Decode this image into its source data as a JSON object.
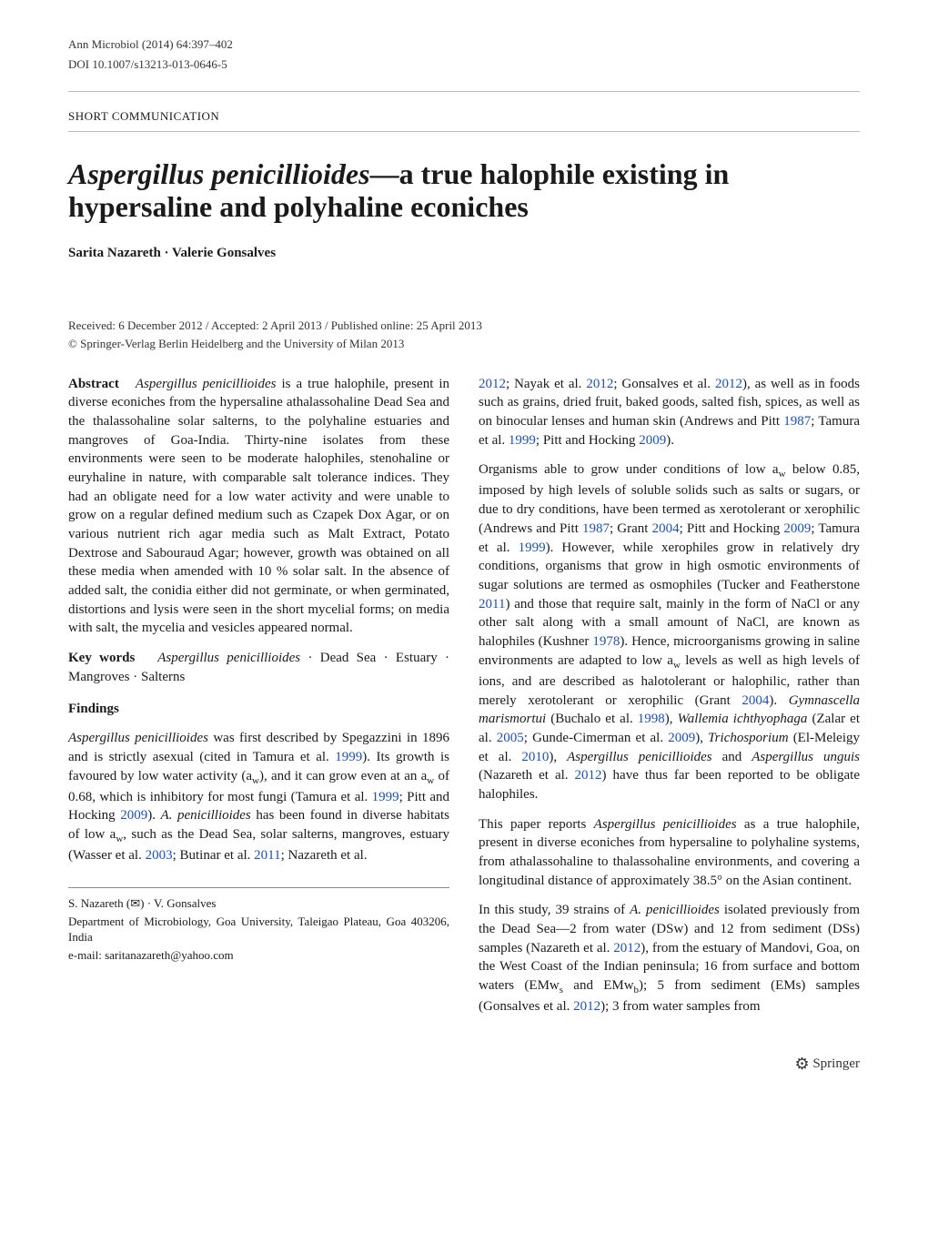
{
  "header": {
    "journal_ref": "Ann Microbiol (2014) 64:397–402",
    "doi": "DOI 10.1007/s13213-013-0646-5",
    "article_type": "SHORT COMMUNICATION"
  },
  "title": {
    "italic_part": "Aspergillus penicillioides",
    "rest": "—a true halophile existing in hypersaline and polyhaline econiches"
  },
  "authors": "Sarita Nazareth · Valerie Gonsalves",
  "dates": "Received: 6 December 2012 / Accepted: 2 April 2013 / Published online: 25 April 2013",
  "copyright": "© Springer-Verlag Berlin Heidelberg and the University of Milan 2013",
  "abstract": {
    "label": "Abstract",
    "text_1_italic": "Aspergillus penicillioides",
    "text_1": " is a true halophile, present in diverse econiches from the hypersaline athalassohaline Dead Sea and the thalassohaline solar salterns, to the polyhaline estuaries and mangroves of Goa-India. Thirty-nine isolates from these environments were seen to be moderate halophiles, stenohaline or euryhaline in nature, with comparable salt tolerance indices. They had an obligate need for a low water activity and were unable to grow on a regular defined medium such as Czapek Dox Agar, or on various nutrient rich agar media such as Malt Extract, Potato Dextrose and Sabouraud Agar; however, growth was obtained on all these media when amended with 10 % solar salt. In the absence of added salt, the conidia either did not germinate, or when germinated, distortions and lysis were seen in the short mycelial forms; on media with salt, the mycelia and vesicles appeared normal."
  },
  "keywords": {
    "label": "Key words",
    "italic_1": "Aspergillus penicillioides",
    "text": " · Dead Sea · Estuary · Mangroves · Salterns"
  },
  "findings": {
    "heading": "Findings",
    "p1_italic_1": "Aspergillus penicillioides",
    "p1_a": " was first described by Spegazzini in 1896 and is strictly asexual (cited in Tamura et al. ",
    "p1_ref1": "1999",
    "p1_b": "). Its growth is favoured by low water activity (a",
    "p1_sub1": "w",
    "p1_c": "), and it can grow even at an a",
    "p1_sub2": "w",
    "p1_d": " of 0.68, which is inhibitory for most fungi (Tamura et al. ",
    "p1_ref2": "1999",
    "p1_e": "; Pitt and Hocking ",
    "p1_ref3": "2009",
    "p1_f": "). ",
    "p1_italic_2": "A. penicillioides",
    "p1_g": " has been found in diverse habitats of low a",
    "p1_sub3": "w",
    "p1_h": ", such as the Dead Sea, solar salterns, mangroves, estuary (Wasser et al. ",
    "p1_ref4": "2003",
    "p1_i": "; Butinar et al. ",
    "p1_ref5": "2011",
    "p1_j": "; Nazareth et al. "
  },
  "affiliation": {
    "line1a": "S. Nazareth (",
    "envelope": "✉",
    "line1b": ") · V. Gonsalves",
    "line2": "Department of Microbiology, Goa University, Taleigao Plateau, Goa 403206, India",
    "line3": "e-mail: saritanazareth@yahoo.com"
  },
  "right_col": {
    "p1_ref1": "2012",
    "p1_a": "; Nayak et al. ",
    "p1_ref2": "2012",
    "p1_b": "; Gonsalves et al. ",
    "p1_ref3": "2012",
    "p1_c": "), as well as in foods such as grains, dried fruit, baked goods, salted fish, spices, as well as on binocular lenses and human skin (Andrews and Pitt ",
    "p1_ref4": "1987",
    "p1_d": "; Tamura et al. ",
    "p1_ref5": "1999",
    "p1_e": "; Pitt and Hocking ",
    "p1_ref6": "2009",
    "p1_f": ").",
    "p2_a": "Organisms able to grow under conditions of low a",
    "p2_sub1": "w",
    "p2_b": " below 0.85, imposed by high levels of soluble solids such as salts or sugars, or due to dry conditions, have been termed as xerotolerant or xerophilic (Andrews and Pitt ",
    "p2_ref1": "1987",
    "p2_c": "; Grant ",
    "p2_ref2": "2004",
    "p2_d": "; Pitt and Hocking ",
    "p2_ref3": "2009",
    "p2_e": "; Tamura et al. ",
    "p2_ref4": "1999",
    "p2_f": "). However, while xerophiles grow in relatively dry conditions, organisms that grow in high osmotic environments of sugar solutions are termed as osmophiles (Tucker and Featherstone ",
    "p2_ref5": "2011",
    "p2_g": ") and those that require salt, mainly in the form of NaCl or any other salt along with a small amount of NaCl, are known as halophiles (Kushner ",
    "p2_ref6": "1978",
    "p2_h": "). Hence, microorganisms growing in saline environments are adapted to low a",
    "p2_sub2": "w",
    "p2_i": " levels as well as high levels of ions, and are described as halotolerant or halophilic, rather than merely xerotolerant or xerophilic (Grant ",
    "p2_ref7": "2004",
    "p2_j": "). ",
    "p2_italic1": "Gymnascella marismortui",
    "p2_k": " (Buchalo et al. ",
    "p2_ref8": "1998",
    "p2_l": "), ",
    "p2_italic2": "Wallemia ichthyophaga",
    "p2_m": " (Zalar et al. ",
    "p2_ref9": "2005",
    "p2_n": "; Gunde-Cimerman et al. ",
    "p2_ref10": "2009",
    "p2_o": "), ",
    "p2_italic3": "Trichosporium",
    "p2_p": " (El-Meleigy et al. ",
    "p2_ref11": "2010",
    "p2_q": "), ",
    "p2_italic4": "Aspergillus penicillioides",
    "p2_r": " and ",
    "p2_italic5": "Aspergillus unguis",
    "p2_s": " (Nazareth et al. ",
    "p2_ref12": "2012",
    "p2_t": ") have thus far been reported to be obligate halophiles.",
    "p3_a": "This paper reports ",
    "p3_italic1": "Aspergillus penicillioides",
    "p3_b": " as a true halophile, present in diverse econiches from hypersaline to polyhaline systems, from athalassohaline to thalassohaline environments, and covering a longitudinal distance of approximately 38.5° on the Asian continent.",
    "p4_a": "In this study, 39 strains of ",
    "p4_italic1": "A. penicillioides",
    "p4_b": " isolated previously from the Dead Sea—2 from water (DSw) and 12 from sediment (DSs) samples (Nazareth et al. ",
    "p4_ref1": "2012",
    "p4_c": "), from the estuary of Mandovi, Goa, on the West Coast of the Indian peninsula; 16 from surface and bottom waters (EMw",
    "p4_sub1": "s",
    "p4_d": " and EMw",
    "p4_sub2": "b",
    "p4_e": "); 5 from sediment (EMs) samples (Gonsalves et al. ",
    "p4_ref2": "2012",
    "p4_f": "); 3 from water samples from"
  },
  "footer": {
    "springer": "Springer"
  }
}
